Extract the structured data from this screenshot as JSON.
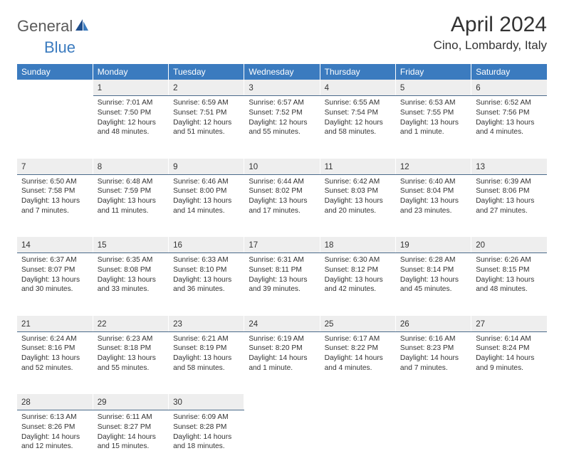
{
  "logo": {
    "part1": "General",
    "part2": "Blue"
  },
  "title": "April 2024",
  "location": "Cino, Lombardy, Italy",
  "colors": {
    "header_bg": "#3b7bbf",
    "header_text": "#ffffff",
    "daynum_bg": "#eeeeee",
    "daynum_border": "#4a6a8a",
    "text": "#333333",
    "logo_gray": "#5a5a5a",
    "logo_blue": "#3b7bbf"
  },
  "weekdays": [
    "Sunday",
    "Monday",
    "Tuesday",
    "Wednesday",
    "Thursday",
    "Friday",
    "Saturday"
  ],
  "weeks": [
    {
      "nums": [
        "",
        "1",
        "2",
        "3",
        "4",
        "5",
        "6"
      ],
      "cells": [
        null,
        {
          "sr": "Sunrise: 7:01 AM",
          "ss": "Sunset: 7:50 PM",
          "dl": "Daylight: 12 hours and 48 minutes."
        },
        {
          "sr": "Sunrise: 6:59 AM",
          "ss": "Sunset: 7:51 PM",
          "dl": "Daylight: 12 hours and 51 minutes."
        },
        {
          "sr": "Sunrise: 6:57 AM",
          "ss": "Sunset: 7:52 PM",
          "dl": "Daylight: 12 hours and 55 minutes."
        },
        {
          "sr": "Sunrise: 6:55 AM",
          "ss": "Sunset: 7:54 PM",
          "dl": "Daylight: 12 hours and 58 minutes."
        },
        {
          "sr": "Sunrise: 6:53 AM",
          "ss": "Sunset: 7:55 PM",
          "dl": "Daylight: 13 hours and 1 minute."
        },
        {
          "sr": "Sunrise: 6:52 AM",
          "ss": "Sunset: 7:56 PM",
          "dl": "Daylight: 13 hours and 4 minutes."
        }
      ]
    },
    {
      "nums": [
        "7",
        "8",
        "9",
        "10",
        "11",
        "12",
        "13"
      ],
      "cells": [
        {
          "sr": "Sunrise: 6:50 AM",
          "ss": "Sunset: 7:58 PM",
          "dl": "Daylight: 13 hours and 7 minutes."
        },
        {
          "sr": "Sunrise: 6:48 AM",
          "ss": "Sunset: 7:59 PM",
          "dl": "Daylight: 13 hours and 11 minutes."
        },
        {
          "sr": "Sunrise: 6:46 AM",
          "ss": "Sunset: 8:00 PM",
          "dl": "Daylight: 13 hours and 14 minutes."
        },
        {
          "sr": "Sunrise: 6:44 AM",
          "ss": "Sunset: 8:02 PM",
          "dl": "Daylight: 13 hours and 17 minutes."
        },
        {
          "sr": "Sunrise: 6:42 AM",
          "ss": "Sunset: 8:03 PM",
          "dl": "Daylight: 13 hours and 20 minutes."
        },
        {
          "sr": "Sunrise: 6:40 AM",
          "ss": "Sunset: 8:04 PM",
          "dl": "Daylight: 13 hours and 23 minutes."
        },
        {
          "sr": "Sunrise: 6:39 AM",
          "ss": "Sunset: 8:06 PM",
          "dl": "Daylight: 13 hours and 27 minutes."
        }
      ]
    },
    {
      "nums": [
        "14",
        "15",
        "16",
        "17",
        "18",
        "19",
        "20"
      ],
      "cells": [
        {
          "sr": "Sunrise: 6:37 AM",
          "ss": "Sunset: 8:07 PM",
          "dl": "Daylight: 13 hours and 30 minutes."
        },
        {
          "sr": "Sunrise: 6:35 AM",
          "ss": "Sunset: 8:08 PM",
          "dl": "Daylight: 13 hours and 33 minutes."
        },
        {
          "sr": "Sunrise: 6:33 AM",
          "ss": "Sunset: 8:10 PM",
          "dl": "Daylight: 13 hours and 36 minutes."
        },
        {
          "sr": "Sunrise: 6:31 AM",
          "ss": "Sunset: 8:11 PM",
          "dl": "Daylight: 13 hours and 39 minutes."
        },
        {
          "sr": "Sunrise: 6:30 AM",
          "ss": "Sunset: 8:12 PM",
          "dl": "Daylight: 13 hours and 42 minutes."
        },
        {
          "sr": "Sunrise: 6:28 AM",
          "ss": "Sunset: 8:14 PM",
          "dl": "Daylight: 13 hours and 45 minutes."
        },
        {
          "sr": "Sunrise: 6:26 AM",
          "ss": "Sunset: 8:15 PM",
          "dl": "Daylight: 13 hours and 48 minutes."
        }
      ]
    },
    {
      "nums": [
        "21",
        "22",
        "23",
        "24",
        "25",
        "26",
        "27"
      ],
      "cells": [
        {
          "sr": "Sunrise: 6:24 AM",
          "ss": "Sunset: 8:16 PM",
          "dl": "Daylight: 13 hours and 52 minutes."
        },
        {
          "sr": "Sunrise: 6:23 AM",
          "ss": "Sunset: 8:18 PM",
          "dl": "Daylight: 13 hours and 55 minutes."
        },
        {
          "sr": "Sunrise: 6:21 AM",
          "ss": "Sunset: 8:19 PM",
          "dl": "Daylight: 13 hours and 58 minutes."
        },
        {
          "sr": "Sunrise: 6:19 AM",
          "ss": "Sunset: 8:20 PM",
          "dl": "Daylight: 14 hours and 1 minute."
        },
        {
          "sr": "Sunrise: 6:17 AM",
          "ss": "Sunset: 8:22 PM",
          "dl": "Daylight: 14 hours and 4 minutes."
        },
        {
          "sr": "Sunrise: 6:16 AM",
          "ss": "Sunset: 8:23 PM",
          "dl": "Daylight: 14 hours and 7 minutes."
        },
        {
          "sr": "Sunrise: 6:14 AM",
          "ss": "Sunset: 8:24 PM",
          "dl": "Daylight: 14 hours and 9 minutes."
        }
      ]
    },
    {
      "nums": [
        "28",
        "29",
        "30",
        "",
        "",
        "",
        ""
      ],
      "cells": [
        {
          "sr": "Sunrise: 6:13 AM",
          "ss": "Sunset: 8:26 PM",
          "dl": "Daylight: 14 hours and 12 minutes."
        },
        {
          "sr": "Sunrise: 6:11 AM",
          "ss": "Sunset: 8:27 PM",
          "dl": "Daylight: 14 hours and 15 minutes."
        },
        {
          "sr": "Sunrise: 6:09 AM",
          "ss": "Sunset: 8:28 PM",
          "dl": "Daylight: 14 hours and 18 minutes."
        },
        null,
        null,
        null,
        null
      ]
    }
  ]
}
